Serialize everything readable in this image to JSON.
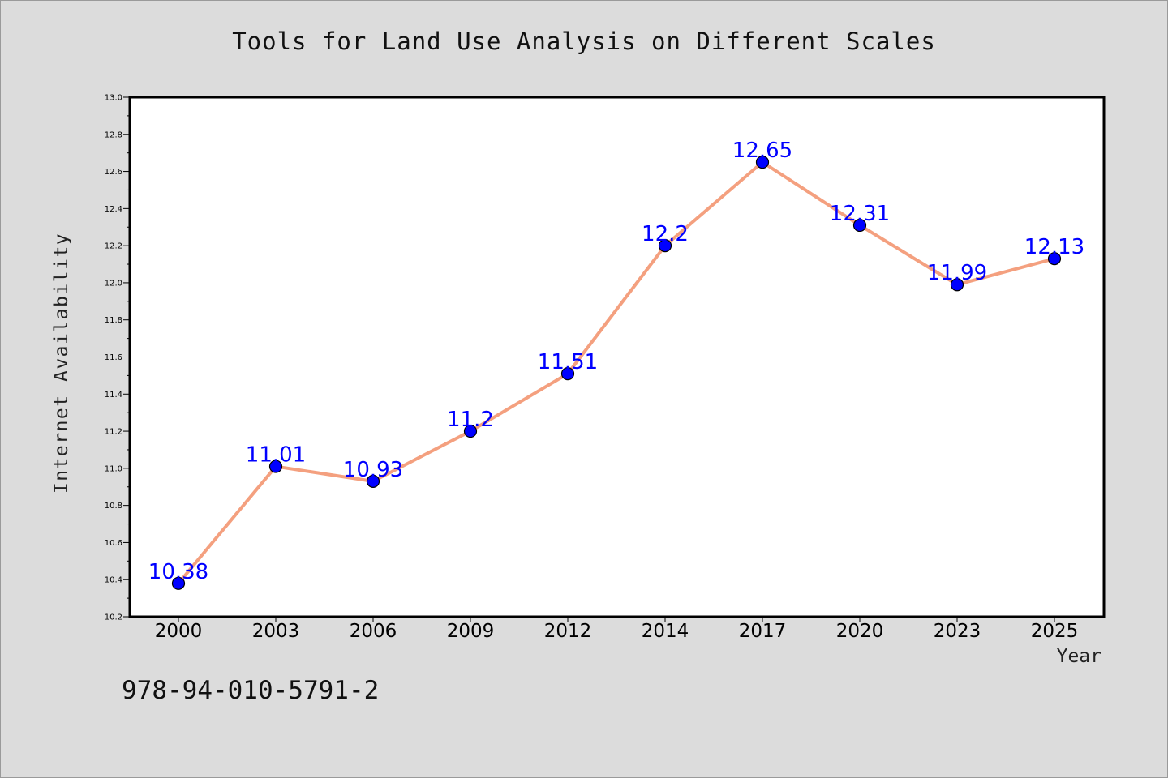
{
  "chart_data": {
    "type": "line",
    "title": "Tools for Land Use Analysis on Different Scales",
    "xlabel": "Year",
    "ylabel": "Internet Availability",
    "categories": [
      "2000",
      "2003",
      "2006",
      "2009",
      "2012",
      "2014",
      "2017",
      "2020",
      "2023",
      "2025"
    ],
    "series": [
      {
        "values": [
          10.38,
          11.01,
          10.93,
          11.2,
          11.51,
          12.2,
          12.65,
          12.31,
          11.99,
          12.13
        ],
        "data_labels": [
          "10.38",
          "11.01",
          "10.93",
          "11.2",
          "11.51",
          "12.2",
          "12.65",
          "12.31",
          "11.99",
          "12.13"
        ],
        "line_color": "#f4a07f",
        "marker_color": "#0000ff"
      }
    ],
    "ylim": [
      10.2,
      13.0
    ],
    "yticks": [
      "10.2",
      "10.4",
      "10.6",
      "10.8",
      "11.0",
      "11.2",
      "11.4",
      "11.6",
      "11.8",
      "12.0",
      "12.2",
      "12.4",
      "12.6",
      "12.8",
      "13.0"
    ],
    "grid": false,
    "legend": "none",
    "label_color": "#0000ff"
  },
  "footer_text": "978-94-010-5791-2"
}
